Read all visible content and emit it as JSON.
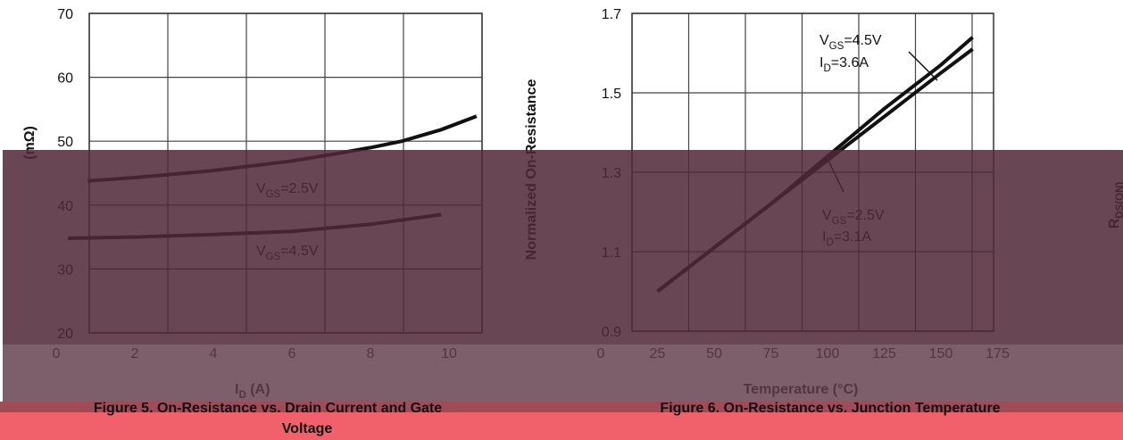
{
  "chart_data": [
    {
      "type": "line",
      "y_label_visible": "(mΩ)",
      "x_label": {
        "main": "I",
        "sub": "D",
        "rest": " (A)"
      },
      "caption": "Figure 5. On-Resistance vs. Drain Current and Gate",
      "caption_2": "Voltage",
      "xlim": [
        0,
        10
      ],
      "xticks": [
        0,
        2,
        4,
        6,
        8,
        10
      ],
      "ylim": [
        20,
        70
      ],
      "yticks": [
        20,
        30,
        40,
        50,
        60,
        70
      ],
      "grid": true,
      "series": [
        {
          "name": {
            "main": "V",
            "sub": "GS",
            "rest": "=2.5V"
          },
          "color": "#111111",
          "x": [
            0.8,
            2,
            4,
            6,
            7,
            8,
            8.8,
            9.8,
            10.7
          ],
          "values": [
            43.8,
            44.3,
            45.4,
            46.9,
            47.9,
            49.0,
            50.0,
            51.8,
            53.9
          ]
        },
        {
          "name": {
            "main": "V",
            "sub": "GS",
            "rest": "=4.5V"
          },
          "color": "#111111",
          "x": [
            0.3,
            2,
            4,
            6,
            8,
            9.8
          ],
          "values": [
            34.8,
            35.0,
            35.4,
            35.9,
            37.0,
            38.5
          ]
        }
      ]
    },
    {
      "type": "line",
      "y_label": "Normalized On-Resistance",
      "y_label_right": {
        "main": "R",
        "sub": "DS(ON)"
      },
      "x_label": "Temperature (°C)",
      "caption": "Figure 6. On-Resistance vs. Junction Temperature",
      "xlim": [
        0,
        175
      ],
      "xticks": [
        0,
        25,
        50,
        75,
        100,
        125,
        150,
        175
      ],
      "ylim": [
        0.9,
        1.7
      ],
      "yticks": [
        0.9,
        1.1,
        1.3,
        1.5,
        1.7
      ],
      "grid": true,
      "series": [
        {
          "name": {
            "main": "V",
            "sub": "GS",
            "rest": "=4.5V",
            "line2": {
              "main": "I",
              "sub": "D",
              "rest": "=3.6A"
            }
          },
          "color": "#111111",
          "x": [
            25,
            50,
            75,
            100,
            125,
            150,
            164
          ],
          "values": [
            1.0,
            1.11,
            1.22,
            1.34,
            1.46,
            1.57,
            1.64
          ]
        },
        {
          "name": {
            "main": "V",
            "sub": "GS",
            "rest": "=2.5V",
            "line2": {
              "main": "I",
              "sub": "D",
              "rest": "=3.1A"
            }
          },
          "color": "#111111",
          "x": [
            25,
            50,
            75,
            100,
            125,
            150,
            164
          ],
          "values": [
            1.0,
            1.11,
            1.22,
            1.33,
            1.44,
            1.55,
            1.61
          ]
        }
      ]
    }
  ]
}
